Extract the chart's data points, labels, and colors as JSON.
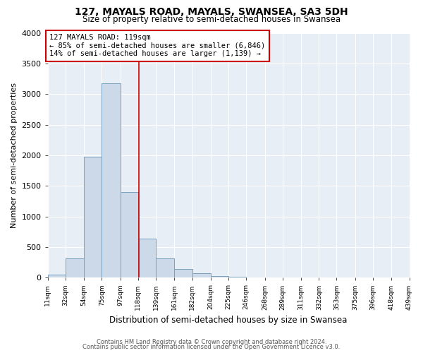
{
  "title": "127, MAYALS ROAD, MAYALS, SWANSEA, SA3 5DH",
  "subtitle": "Size of property relative to semi-detached houses in Swansea",
  "xlabel": "Distribution of semi-detached houses by size in Swansea",
  "ylabel": "Number of semi-detached properties",
  "footer_line1": "Contains HM Land Registry data © Crown copyright and database right 2024.",
  "footer_line2": "Contains public sector information licensed under the Open Government Licence v3.0.",
  "bin_edges": [
    11,
    32,
    54,
    75,
    97,
    118,
    139,
    161,
    182,
    204,
    225,
    246,
    268,
    289,
    311,
    332,
    353,
    375,
    396,
    418,
    439
  ],
  "bin_counts": [
    50,
    320,
    1980,
    3170,
    1400,
    640,
    310,
    140,
    70,
    30,
    10,
    5,
    2,
    1,
    0,
    0,
    0,
    0,
    0,
    0
  ],
  "bar_facecolor": "#ccd9e8",
  "bar_edgecolor": "#7aa0bf",
  "property_value": 119,
  "vline_color": "#cc0000",
  "vline_label": "127 MAYALS ROAD: 119sqm",
  "annotation_line2": "← 85% of semi-detached houses are smaller (6,846)",
  "annotation_line3": "14% of semi-detached houses are larger (1,139) →",
  "box_edgecolor": "#cc0000",
  "box_facecolor": "#ffffff",
  "ylim": [
    0,
    4000
  ],
  "background_color": "#ffffff",
  "plot_background": "#e8eef5",
  "grid_color": "#ffffff",
  "tick_labels": [
    "11sqm",
    "32sqm",
    "54sqm",
    "75sqm",
    "97sqm",
    "118sqm",
    "139sqm",
    "161sqm",
    "182sqm",
    "204sqm",
    "225sqm",
    "246sqm",
    "268sqm",
    "289sqm",
    "311sqm",
    "332sqm",
    "353sqm",
    "375sqm",
    "396sqm",
    "418sqm",
    "439sqm"
  ]
}
